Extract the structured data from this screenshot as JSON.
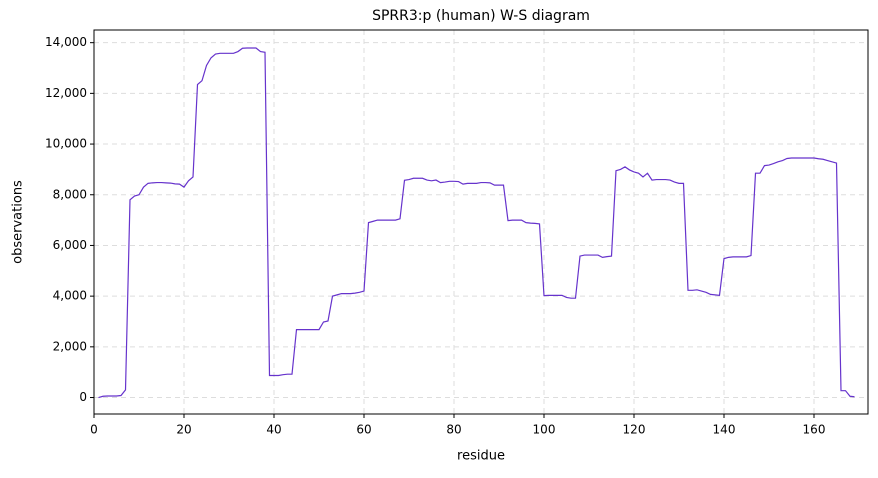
{
  "chart_data": {
    "type": "line",
    "title": "SPRR3:p (human) W-S diagram",
    "x_label": "residue",
    "y_label": "observations",
    "x": [
      1,
      2,
      3,
      4,
      5,
      6,
      7,
      8,
      9,
      10,
      11,
      12,
      13,
      14,
      15,
      16,
      17,
      18,
      19,
      20,
      21,
      22,
      23,
      24,
      25,
      26,
      27,
      28,
      29,
      30,
      31,
      32,
      33,
      34,
      35,
      36,
      37,
      38,
      39,
      40,
      41,
      42,
      43,
      44,
      45,
      46,
      47,
      48,
      49,
      50,
      51,
      52,
      53,
      54,
      55,
      56,
      57,
      58,
      59,
      60,
      61,
      62,
      63,
      64,
      65,
      66,
      67,
      68,
      69,
      70,
      71,
      72,
      73,
      74,
      75,
      76,
      77,
      78,
      79,
      80,
      81,
      82,
      83,
      84,
      85,
      86,
      87,
      88,
      89,
      90,
      91,
      92,
      93,
      94,
      95,
      96,
      97,
      98,
      99,
      100,
      101,
      102,
      103,
      104,
      105,
      106,
      107,
      108,
      109,
      110,
      111,
      112,
      113,
      114,
      115,
      116,
      117,
      118,
      119,
      120,
      121,
      122,
      123,
      124,
      125,
      126,
      127,
      128,
      129,
      130,
      131,
      132,
      133,
      134,
      135,
      136,
      137,
      138,
      139,
      140,
      141,
      142,
      143,
      144,
      145,
      146,
      147,
      148,
      149,
      150,
      151,
      152,
      153,
      154,
      155,
      156,
      157,
      158,
      159,
      160,
      161,
      162,
      163,
      164,
      165,
      166,
      167,
      168,
      169
    ],
    "series": [
      {
        "name": "observations",
        "color": "#6633cc",
        "values": [
          0,
          50,
          60,
          60,
          60,
          80,
          300,
          7800,
          7950,
          8000,
          8300,
          8450,
          8470,
          8480,
          8480,
          8470,
          8460,
          8430,
          8420,
          8300,
          8550,
          8700,
          12350,
          12500,
          13100,
          13400,
          13550,
          13580,
          13580,
          13580,
          13580,
          13650,
          13780,
          13790,
          13790,
          13790,
          13650,
          13620,
          870,
          870,
          870,
          900,
          920,
          920,
          2680,
          2680,
          2680,
          2680,
          2680,
          2680,
          2980,
          3020,
          4000,
          4050,
          4100,
          4100,
          4100,
          4120,
          4150,
          4200,
          6900,
          6950,
          7000,
          7000,
          7000,
          7000,
          7000,
          7050,
          8570,
          8600,
          8650,
          8650,
          8650,
          8580,
          8550,
          8580,
          8480,
          8500,
          8530,
          8530,
          8520,
          8420,
          8450,
          8450,
          8450,
          8480,
          8480,
          8470,
          8380,
          8380,
          8380,
          6980,
          7000,
          7000,
          7000,
          6900,
          6880,
          6870,
          6850,
          4020,
          4030,
          4030,
          4030,
          4030,
          3950,
          3920,
          3920,
          5580,
          5620,
          5620,
          5620,
          5620,
          5530,
          5560,
          5580,
          8950,
          9000,
          9100,
          8980,
          8900,
          8850,
          8700,
          8850,
          8580,
          8600,
          8600,
          8600,
          8580,
          8500,
          8450,
          8450,
          4230,
          4230,
          4250,
          4200,
          4150,
          4070,
          4050,
          4030,
          5480,
          5530,
          5550,
          5550,
          5550,
          5550,
          5600,
          8850,
          8850,
          9150,
          9170,
          9230,
          9300,
          9350,
          9430,
          9450,
          9450,
          9450,
          9450,
          9450,
          9450,
          9420,
          9400,
          9350,
          9300,
          9250,
          270,
          270,
          50,
          30
        ]
      }
    ],
    "xlim": [
      0,
      172
    ],
    "ylim": [
      -650,
      14500
    ],
    "xticks": [
      0,
      20,
      40,
      60,
      80,
      100,
      120,
      140,
      160
    ],
    "yticks": [
      0,
      {
        "value": 2000,
        "label": "2,000"
      },
      {
        "value": 4000,
        "label": "4,000"
      },
      {
        "value": 6000,
        "label": "6,000"
      },
      {
        "value": 8000,
        "label": "8,000"
      },
      {
        "value": 10000,
        "label": "10,000"
      },
      {
        "value": 12000,
        "label": "12,000"
      },
      {
        "value": 14000,
        "label": "14,000"
      }
    ],
    "grid": true
  }
}
